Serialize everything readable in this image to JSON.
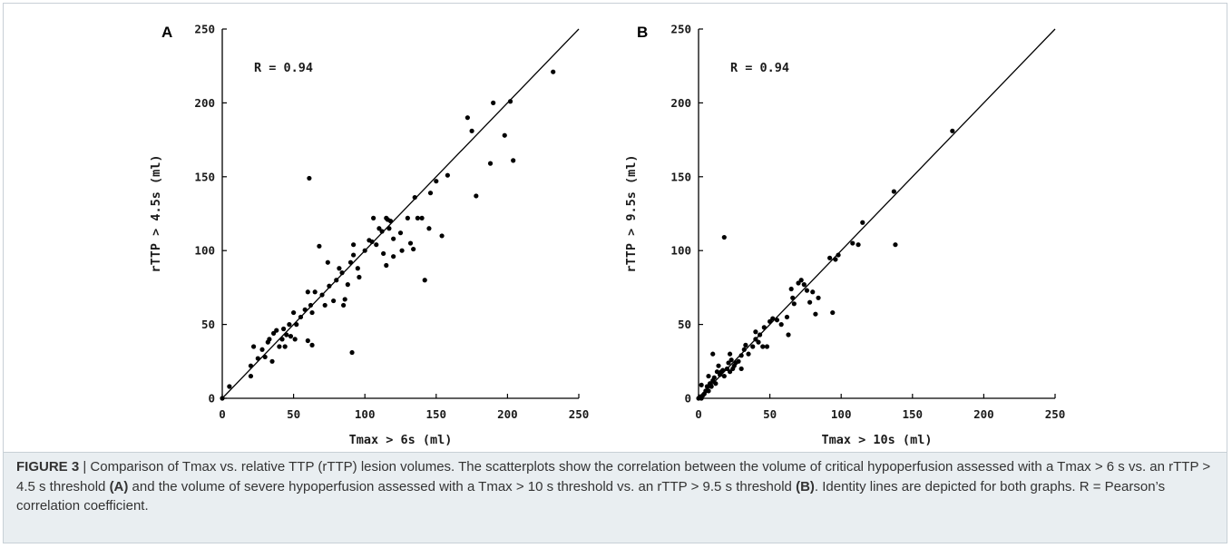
{
  "caption": {
    "figure_label": "FIGURE 3",
    "separator": " | ",
    "part1": "Comparison of Tmax vs. relative TTP (rTTP) lesion volumes. The scatterplots show the correlation between the volume of critical hypoperfusion assessed with a Tmax > 6 s vs. an rTTP > 4.5 s threshold ",
    "ref_a": "(A)",
    "part2": " and the volume of severe hypoperfusion assessed with a Tmax > 10 s threshold vs. an rTTP > 9.5 s threshold ",
    "ref_b": "(B)",
    "part3": ". Identity lines are depicted for both graphs. R = Pearson’s correlation coefficient."
  },
  "chart_data": [
    {
      "type": "scatter",
      "panel": "A",
      "annotation": "R = 0.94",
      "xlabel": "Tmax > 6s (ml)",
      "ylabel": "rTTP > 4.5s (ml)",
      "xlim": [
        0,
        250
      ],
      "ylim": [
        0,
        250
      ],
      "xticks": [
        0,
        50,
        100,
        150,
        200,
        250
      ],
      "yticks": [
        0,
        50,
        100,
        150,
        200,
        250
      ],
      "grid": false,
      "identity_line": true,
      "points": [
        [
          0,
          0
        ],
        [
          5,
          8
        ],
        [
          20,
          15
        ],
        [
          20,
          22
        ],
        [
          22,
          35
        ],
        [
          25,
          27
        ],
        [
          28,
          33
        ],
        [
          30,
          28
        ],
        [
          32,
          38
        ],
        [
          33,
          40
        ],
        [
          35,
          25
        ],
        [
          36,
          44
        ],
        [
          38,
          46
        ],
        [
          40,
          35
        ],
        [
          42,
          40
        ],
        [
          43,
          47
        ],
        [
          44,
          35
        ],
        [
          45,
          43
        ],
        [
          47,
          50
        ],
        [
          48,
          42
        ],
        [
          50,
          58
        ],
        [
          51,
          40
        ],
        [
          52,
          50
        ],
        [
          55,
          55
        ],
        [
          58,
          60
        ],
        [
          60,
          39
        ],
        [
          60,
          72
        ],
        [
          61,
          149
        ],
        [
          62,
          63
        ],
        [
          63,
          36
        ],
        [
          63,
          58
        ],
        [
          65,
          72
        ],
        [
          68,
          103
        ],
        [
          70,
          70
        ],
        [
          72,
          63
        ],
        [
          74,
          92
        ],
        [
          75,
          76
        ],
        [
          78,
          66
        ],
        [
          80,
          80
        ],
        [
          82,
          88
        ],
        [
          84,
          85
        ],
        [
          85,
          63
        ],
        [
          86,
          67
        ],
        [
          88,
          77
        ],
        [
          90,
          92
        ],
        [
          91,
          31
        ],
        [
          92,
          97
        ],
        [
          92,
          104
        ],
        [
          95,
          88
        ],
        [
          96,
          82
        ],
        [
          100,
          100
        ],
        [
          103,
          107
        ],
        [
          105,
          106
        ],
        [
          106,
          122
        ],
        [
          108,
          104
        ],
        [
          110,
          115
        ],
        [
          112,
          113
        ],
        [
          113,
          98
        ],
        [
          115,
          122
        ],
        [
          116,
          121
        ],
        [
          117,
          115
        ],
        [
          118,
          120
        ],
        [
          120,
          108
        ],
        [
          115,
          90
        ],
        [
          120,
          96
        ],
        [
          125,
          112
        ],
        [
          126,
          100
        ],
        [
          130,
          122
        ],
        [
          132,
          105
        ],
        [
          134,
          101
        ],
        [
          135,
          136
        ],
        [
          137,
          122
        ],
        [
          140,
          122
        ],
        [
          142,
          80
        ],
        [
          145,
          115
        ],
        [
          146,
          139
        ],
        [
          150,
          147
        ],
        [
          154,
          110
        ],
        [
          158,
          151
        ],
        [
          172,
          190
        ],
        [
          175,
          181
        ],
        [
          178,
          137
        ],
        [
          188,
          159
        ],
        [
          190,
          200
        ],
        [
          198,
          178
        ],
        [
          202,
          201
        ],
        [
          204,
          161
        ],
        [
          232,
          221
        ]
      ]
    },
    {
      "type": "scatter",
      "panel": "B",
      "annotation": "R = 0.94",
      "xlabel": "Tmax > 10s (ml)",
      "ylabel": "rTTP > 9.5s (ml)",
      "xlim": [
        0,
        250
      ],
      "ylim": [
        0,
        250
      ],
      "xticks": [
        0,
        50,
        100,
        150,
        200,
        250
      ],
      "yticks": [
        0,
        50,
        100,
        150,
        200,
        250
      ],
      "grid": false,
      "identity_line": true,
      "points": [
        [
          0,
          0
        ],
        [
          1,
          1
        ],
        [
          2,
          0
        ],
        [
          2,
          9
        ],
        [
          3,
          2
        ],
        [
          4,
          3
        ],
        [
          5,
          5
        ],
        [
          6,
          8
        ],
        [
          7,
          15
        ],
        [
          7,
          5
        ],
        [
          8,
          10
        ],
        [
          9,
          8
        ],
        [
          10,
          30
        ],
        [
          10,
          12
        ],
        [
          11,
          14
        ],
        [
          12,
          10
        ],
        [
          13,
          18
        ],
        [
          14,
          22
        ],
        [
          15,
          16
        ],
        [
          16,
          18
        ],
        [
          17,
          19
        ],
        [
          18,
          109
        ],
        [
          18,
          15
        ],
        [
          20,
          20
        ],
        [
          21,
          24
        ],
        [
          22,
          18
        ],
        [
          22,
          30
        ],
        [
          23,
          26
        ],
        [
          24,
          20
        ],
        [
          25,
          22
        ],
        [
          26,
          24
        ],
        [
          28,
          25
        ],
        [
          30,
          29
        ],
        [
          30,
          20
        ],
        [
          32,
          33
        ],
        [
          33,
          36
        ],
        [
          35,
          30
        ],
        [
          38,
          35
        ],
        [
          40,
          45
        ],
        [
          40,
          40
        ],
        [
          42,
          38
        ],
        [
          43,
          43
        ],
        [
          45,
          35
        ],
        [
          46,
          48
        ],
        [
          48,
          35
        ],
        [
          50,
          52
        ],
        [
          52,
          54
        ],
        [
          55,
          53
        ],
        [
          58,
          50
        ],
        [
          62,
          55
        ],
        [
          63,
          43
        ],
        [
          65,
          74
        ],
        [
          66,
          68
        ],
        [
          67,
          64
        ],
        [
          70,
          78
        ],
        [
          72,
          80
        ],
        [
          74,
          77
        ],
        [
          76,
          73
        ],
        [
          78,
          65
        ],
        [
          80,
          72
        ],
        [
          82,
          57
        ],
        [
          84,
          68
        ],
        [
          92,
          95
        ],
        [
          94,
          58
        ],
        [
          96,
          94
        ],
        [
          98,
          97
        ],
        [
          108,
          105
        ],
        [
          112,
          104
        ],
        [
          115,
          119
        ],
        [
          137,
          140
        ],
        [
          138,
          104
        ],
        [
          178,
          181
        ]
      ]
    }
  ]
}
